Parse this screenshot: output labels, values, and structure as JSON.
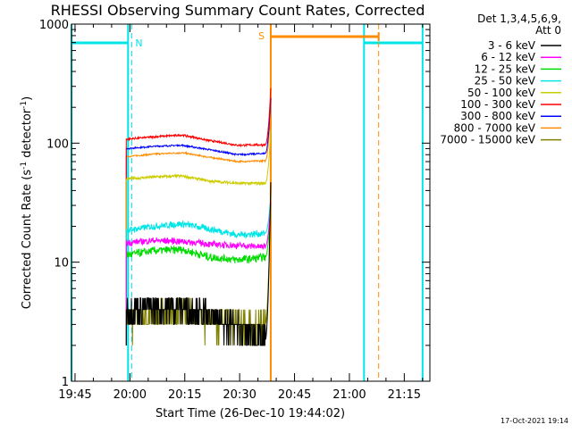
{
  "chart_data": {
    "type": "line",
    "title": "RHESSI Observing Summary Count Rates, Corrected",
    "xlabel": "Start Time (26-Dec-10 19:44:02)",
    "ylabel_main": "Corrected Count Rate (s",
    "ylabel_sup1": "-1",
    "ylabel_mid": " detector",
    "ylabel_sup2": "-1",
    "ylabel_end": ")",
    "yscale": "log",
    "xlim": [
      "19:44:02",
      "21:22"
    ],
    "ylim": [
      1,
      1000
    ],
    "x_ticks": [
      "19:45",
      "20:00",
      "20:15",
      "20:30",
      "20:45",
      "21:00",
      "21:15"
    ],
    "y_ticks": [
      "1",
      "10",
      "100",
      "1000"
    ],
    "legend_header": [
      "Det 1,3,4,5,6,9,",
      "Att 0"
    ],
    "legend_position": "right",
    "footer": "17-Oct-2021 19:14",
    "annotations": [
      {
        "label": "N",
        "color": "#00e5e5",
        "type": "night",
        "intervals": [
          [
            "19:44:02",
            "19:59:30"
          ],
          [
            "21:04",
            "21:20"
          ]
        ],
        "dashed_at": [
          "20:00:30",
          "21:20"
        ]
      },
      {
        "label": "S",
        "color": "#ff8c00",
        "type": "saa",
        "interval": [
          "20:38:30",
          "21:08"
        ],
        "dashed_at": [
          "21:08"
        ]
      }
    ],
    "series": [
      {
        "name": "3 - 6 keV",
        "color": "#000000",
        "x_range": [
          "19:59",
          "20:37"
        ],
        "level": [
          4.0,
          4.3,
          4.2,
          3.6,
          2.8,
          2.2
        ],
        "noise": 0.22,
        "end_value": 47
      },
      {
        "name": "6 - 12 keV",
        "color": "#ff00ff",
        "x_range": [
          "19:59",
          "20:37"
        ],
        "level": [
          14.5,
          15.2,
          15.0,
          14.2,
          13.8,
          13.5
        ],
        "noise": 0.05,
        "end_value": 32
      },
      {
        "name": "12 - 25 keV",
        "color": "#00dd00",
        "x_range": [
          "19:59",
          "20:37"
        ],
        "level": [
          11.5,
          12.5,
          12.8,
          11.0,
          10.5,
          11.0
        ],
        "noise": 0.06,
        "end_value": 30
      },
      {
        "name": "25 - 50 keV",
        "color": "#00e5e5",
        "x_range": [
          "19:59",
          "20:37"
        ],
        "level": [
          18.5,
          20.0,
          21.0,
          19.0,
          17.0,
          17.5
        ],
        "noise": 0.05,
        "end_value": 36
      },
      {
        "name": "50 - 100 keV",
        "color": "#cccc00",
        "x_range": [
          "19:59",
          "20:37"
        ],
        "level": [
          50.0,
          52.0,
          53.0,
          48.0,
          46.0,
          46.0
        ],
        "noise": 0.02,
        "end_value": 130
      },
      {
        "name": "100 - 300 keV",
        "color": "#ff0000",
        "x_range": [
          "19:59",
          "20:37"
        ],
        "level": [
          108.0,
          113.0,
          117.0,
          105.0,
          96.0,
          97.0
        ],
        "noise": 0.015,
        "end_value": 290
      },
      {
        "name": "300 - 800 keV",
        "color": "#0000ff",
        "x_range": [
          "19:59",
          "20:37"
        ],
        "level": [
          90.0,
          94.0,
          96.0,
          88.0,
          80.0,
          82.0
        ],
        "noise": 0.012,
        "end_value": 240
      },
      {
        "name": "800 - 7000 keV",
        "color": "#ff8c00",
        "x_range": [
          "19:59",
          "20:37"
        ],
        "level": [
          77.0,
          81.0,
          83.0,
          76.0,
          70.0,
          71.0
        ],
        "noise": 0.012,
        "end_value": 200
      },
      {
        "name": "7000 - 15000 keV",
        "color": "#808000",
        "x_range": [
          "19:59",
          "20:37"
        ],
        "level": [
          3.3,
          3.6,
          3.9,
          3.5,
          3.0,
          3.0
        ],
        "noise": 0.22,
        "end_value": 44
      }
    ]
  }
}
